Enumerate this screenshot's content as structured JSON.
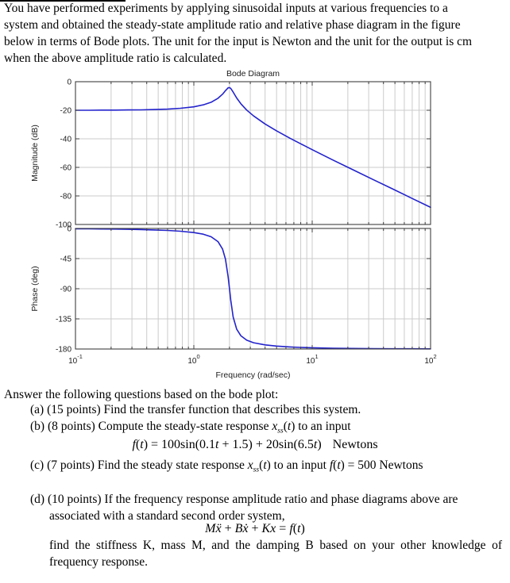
{
  "page": {
    "intro_lines": [
      "You have performed experiments by applying sinusoidal inputs at various frequencies to a",
      "system and obtained the steady-state amplitude ratio and relative phase diagram in the figure",
      "below in terms of Bode plots. The unit for the input is Newton and the unit for the output is cm",
      "when the above amplitude ratio is calculated."
    ]
  },
  "questions": {
    "lead": "Answer the following questions based on the bode plot:",
    "a": "(a) (15 points) Find the transfer function that describes this system.",
    "b_runs": [
      [
        "r",
        "(b) (8 points) Compute the steady-state response "
      ],
      [
        "i",
        "x"
      ],
      [
        "si",
        "ss"
      ],
      [
        "r",
        "("
      ],
      [
        "i",
        "t"
      ],
      [
        "r",
        ") to an input"
      ]
    ],
    "b_equation_runs": [
      [
        "i",
        "f"
      ],
      [
        "r",
        "("
      ],
      [
        "i",
        "t"
      ],
      [
        "r",
        ") = 100sin(0.1"
      ],
      [
        "i",
        "t"
      ],
      [
        "r",
        " + 1.5) + 20sin(6.5"
      ],
      [
        "i",
        "t"
      ],
      [
        "r",
        ")"
      ],
      [
        "sp",
        "Newtons"
      ]
    ],
    "c_runs": [
      [
        "r",
        "(c)  (7 points) Find the steady state response "
      ],
      [
        "i",
        "x"
      ],
      [
        "si",
        "ss"
      ],
      [
        "r",
        "("
      ],
      [
        "i",
        "t"
      ],
      [
        "r",
        ") to an input "
      ],
      [
        "i",
        "f"
      ],
      [
        "r",
        "("
      ],
      [
        "i",
        "t"
      ],
      [
        "r",
        ") = 500 Newtons"
      ]
    ],
    "d_line1": "(d) (10 points) If the frequency response amplitude ratio and phase diagrams above are",
    "d_line2": "associated with a standard second order system,",
    "d_equation_runs": [
      [
        "i",
        "Mẍ"
      ],
      [
        "r",
        " + "
      ],
      [
        "i",
        "Bẋ"
      ],
      [
        "r",
        " + "
      ],
      [
        "i",
        "Kx"
      ],
      [
        "r",
        " = "
      ],
      [
        "i",
        "f"
      ],
      [
        "r",
        "("
      ],
      [
        "i",
        "t"
      ],
      [
        "r",
        ")"
      ]
    ],
    "d_tail_line1": "find the stiffness K, mass M, and the damping B based on your other knowledge of",
    "d_tail_line2": "frequency response."
  },
  "chart_data": {
    "type": "line",
    "title": "Bode Diagram",
    "xlabel": "Frequency  (rad/sec)",
    "x_scale": "log",
    "xlim": [
      0.1,
      100
    ],
    "xticks": [
      0.1,
      1,
      10,
      100
    ],
    "xtick_labels": [
      "10^-1",
      "10^0",
      "10^1",
      "10^2"
    ],
    "grid": true,
    "legend": "none",
    "line_color": "#2323cd",
    "x": [
      0.1,
      0.13,
      0.17,
      0.22,
      0.28,
      0.36,
      0.46,
      0.6,
      0.77,
      1.0,
      1.2,
      1.4,
      1.6,
      1.75,
      1.85,
      1.95,
      2.0,
      2.05,
      2.15,
      2.3,
      2.5,
      2.8,
      3.2,
      4,
      5,
      6.5,
      8,
      10,
      15,
      22,
      33,
      47,
      68,
      100
    ],
    "subplots": [
      {
        "name": "magnitude",
        "ylabel": "Magnitude (dB)",
        "ylim": [
          -100,
          0
        ],
        "yticks": [
          0,
          -20,
          -40,
          -60,
          -80,
          -100
        ],
        "series": [
          {
            "name": "amplitude_ratio_dB",
            "values": [
              -20.0,
              -20.0,
              -19.9,
              -19.9,
              -19.8,
              -19.7,
              -19.5,
              -19.2,
              -18.6,
              -17.6,
              -16.2,
              -14.4,
              -11.6,
              -8.7,
              -6.3,
              -4.3,
              -4.1,
              -4.7,
              -7.3,
              -11.4,
              -15.5,
              -19.9,
              -24.0,
              -29.6,
              -34.4,
              -39.6,
              -43.5,
              -47.6,
              -54.9,
              -61.6,
              -68.7,
              -74.8,
              -81.3,
              -88.0
            ]
          }
        ]
      },
      {
        "name": "phase",
        "ylabel": "Phase (deg)",
        "ylim": [
          -180,
          0
        ],
        "yticks": [
          0,
          -45,
          -90,
          -135,
          -180
        ],
        "series": [
          {
            "name": "phase_deg",
            "values": [
              -0.5,
              -0.6,
              -0.8,
              -1.0,
              -1.3,
              -1.7,
              -2.2,
              -3.0,
              -4.1,
              -6.1,
              -8.5,
              -12.4,
              -19.6,
              -30.9,
              -45.7,
              -72.4,
              -90.0,
              -107.2,
              -132.1,
              -150.3,
              -160.4,
              -166.9,
              -170.7,
              -173.9,
              -175.6,
              -176.9,
              -177.6,
              -178.1,
              -178.8,
              -179.2,
              -179.4,
              -179.6,
              -179.7,
              -179.8
            ]
          }
        ]
      }
    ]
  }
}
